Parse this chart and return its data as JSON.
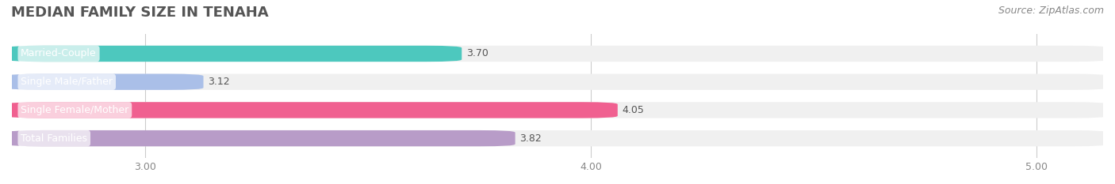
{
  "title": "MEDIAN FAMILY SIZE IN TENAHA",
  "source": "Source: ZipAtlas.com",
  "categories": [
    "Married-Couple",
    "Single Male/Father",
    "Single Female/Mother",
    "Total Families"
  ],
  "values": [
    3.7,
    3.12,
    4.05,
    3.82
  ],
  "colors": [
    "#4DC8BE",
    "#AABFE8",
    "#F06090",
    "#B89CC8"
  ],
  "bar_bg_color": "#F0F0F0",
  "xlim": [
    2.7,
    5.15
  ],
  "xticks": [
    3.0,
    4.0,
    5.0
  ],
  "xtick_labels": [
    "3.00",
    "4.00",
    "5.00"
  ],
  "figsize": [
    14.06,
    2.33
  ],
  "dpi": 100,
  "title_fontsize": 13,
  "label_fontsize": 9,
  "value_fontsize": 9,
  "source_fontsize": 9,
  "bar_height": 0.55,
  "background_color": "#FFFFFF"
}
